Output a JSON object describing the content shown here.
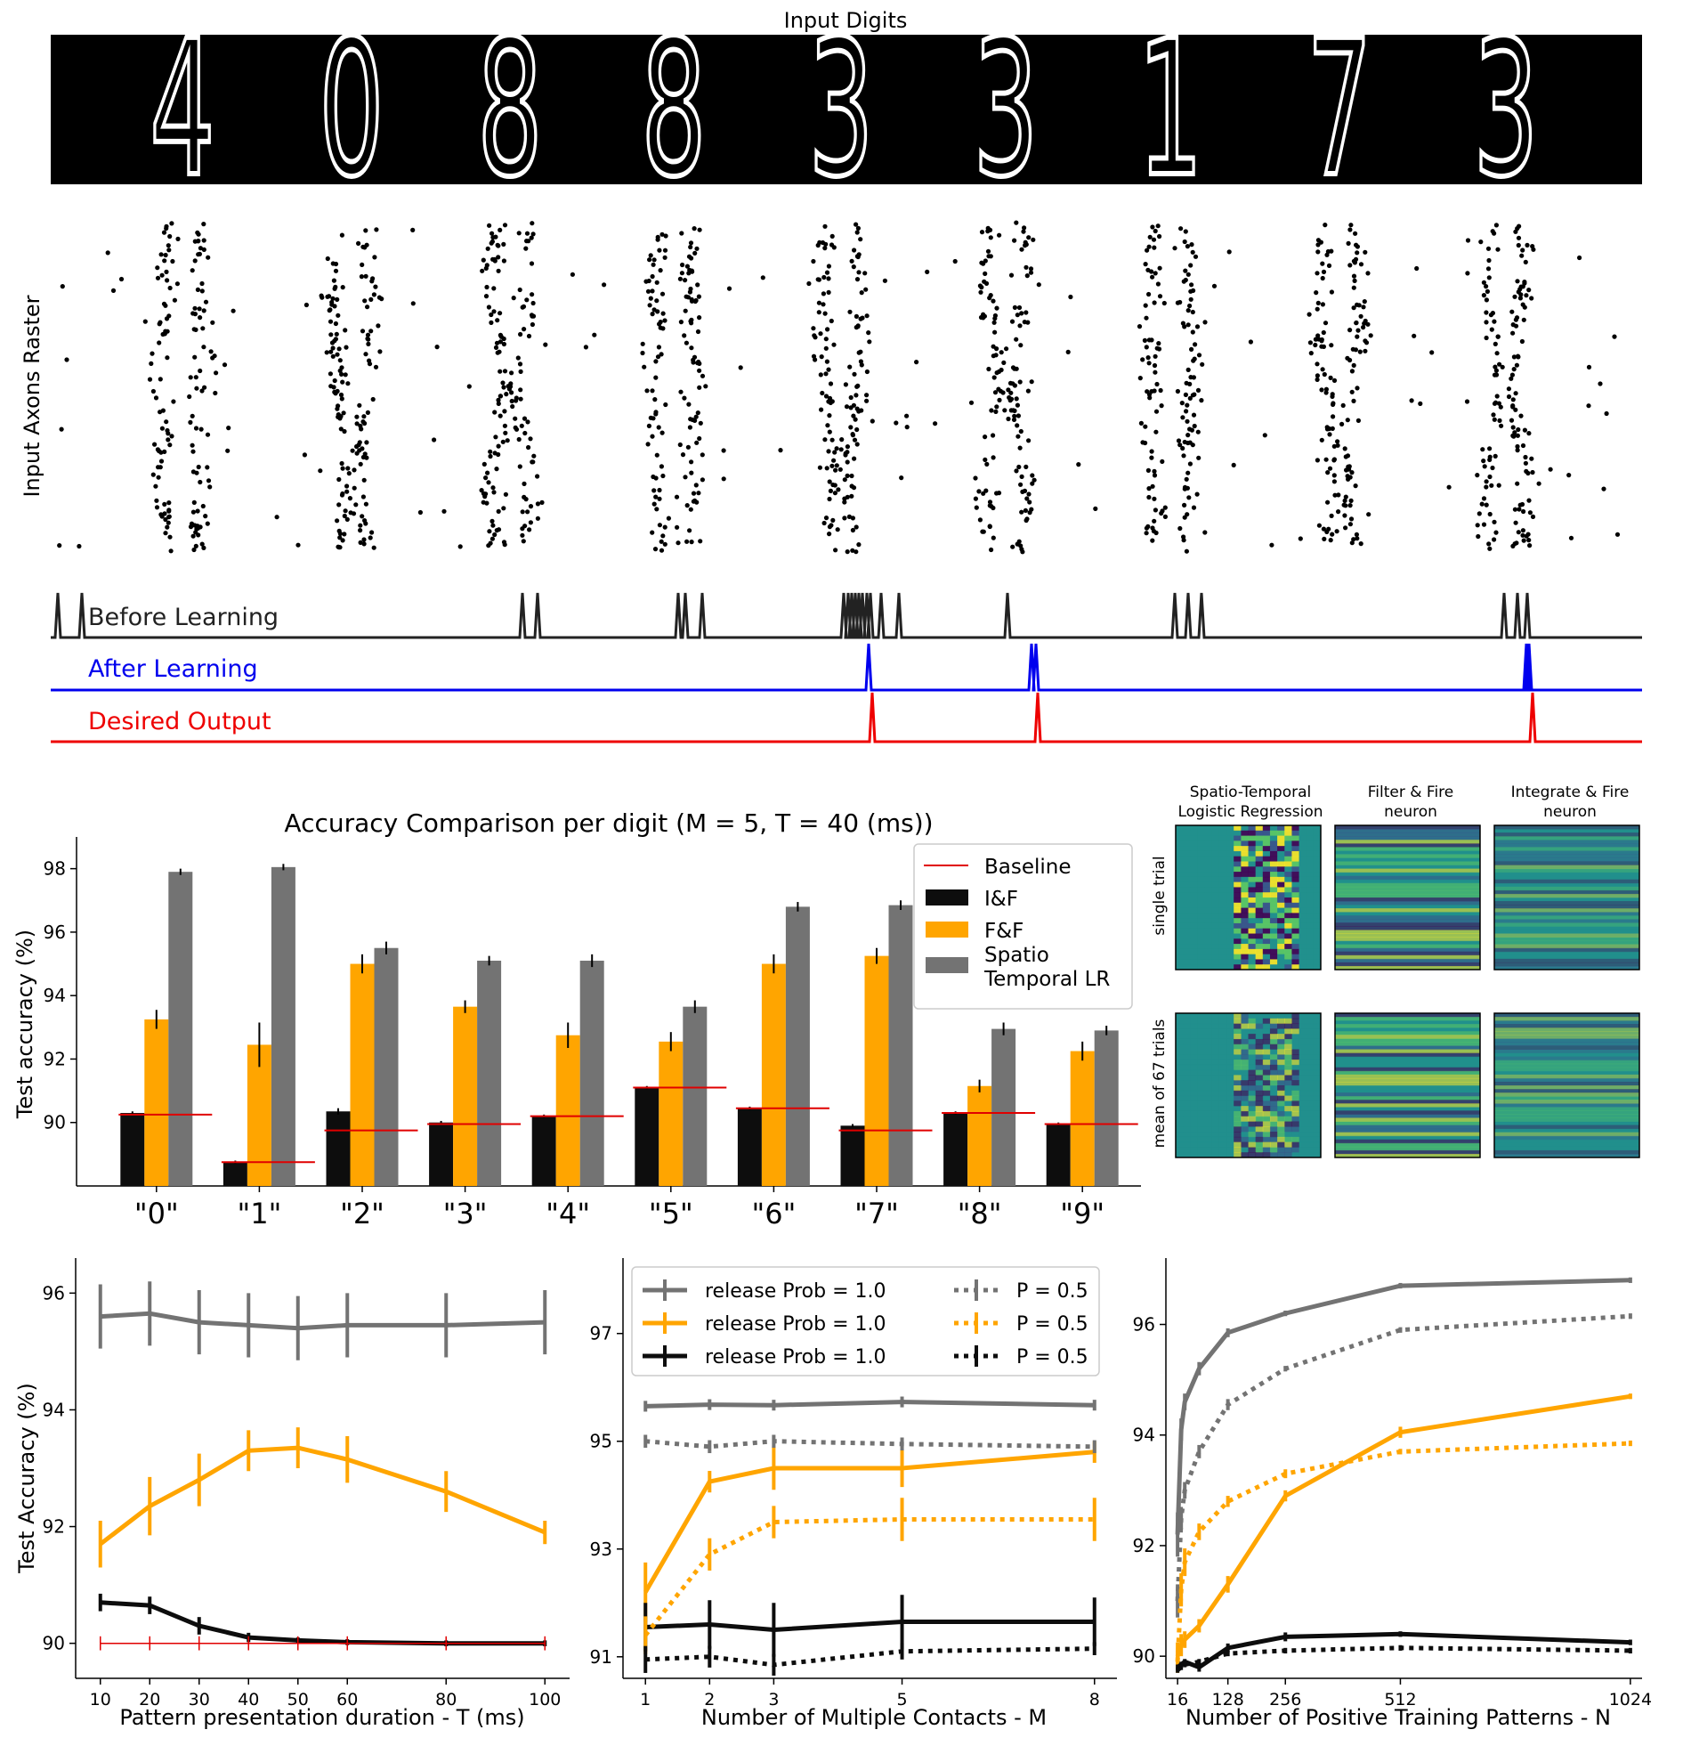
{
  "figure": {
    "input_digits_title": "Input Digits",
    "raster_ylabel": "Input Axons Raster",
    "digits_shown": [
      "4",
      "0",
      "8",
      "8",
      "3",
      "3",
      "1",
      "7",
      "3"
    ],
    "trace_labels": [
      "Before Learning",
      "After Learning",
      "Desired Output"
    ],
    "trace_colors": [
      "#222222",
      "#0000ee",
      "#ee0000"
    ]
  },
  "chart_data": [
    {
      "type": "bar",
      "title": "Accuracy Comparison per digit (M = 5, T = 40 (ms))",
      "ylabel": "Test accuracy (%)",
      "xlabel": "",
      "ylim": [
        88,
        99
      ],
      "yticks": [
        90,
        92,
        94,
        96,
        98
      ],
      "categories": [
        "\"0\"",
        "\"1\"",
        "\"2\"",
        "\"3\"",
        "\"4\"",
        "\"5\"",
        "\"6\"",
        "\"7\"",
        "\"8\"",
        "\"9\""
      ],
      "baseline": {
        "name": "Baseline",
        "color": "#e00000",
        "values": [
          90.25,
          88.75,
          89.75,
          89.95,
          90.2,
          91.1,
          90.45,
          89.75,
          90.3,
          89.95
        ]
      },
      "series": [
        {
          "name": "I&F",
          "color": "#0d0d0d",
          "values": [
            90.3,
            88.75,
            90.35,
            90.0,
            90.2,
            91.1,
            90.45,
            89.9,
            90.3,
            89.95
          ],
          "err": [
            0.05,
            0.05,
            0.1,
            0.05,
            0.05,
            0.05,
            0.05,
            0.05,
            0.05,
            0.05
          ]
        },
        {
          "name": "F&F",
          "color": "#ffa500",
          "values": [
            93.25,
            92.45,
            95.0,
            93.65,
            92.75,
            92.55,
            95.0,
            95.25,
            91.15,
            92.25
          ],
          "err": [
            0.3,
            0.7,
            0.3,
            0.2,
            0.4,
            0.3,
            0.3,
            0.25,
            0.2,
            0.3
          ]
        },
        {
          "name": "Spatio\nTemporal LR",
          "color": "#737373",
          "values": [
            97.9,
            98.05,
            95.5,
            95.1,
            95.1,
            93.65,
            96.8,
            96.85,
            92.95,
            92.9
          ],
          "err": [
            0.1,
            0.1,
            0.2,
            0.15,
            0.2,
            0.2,
            0.15,
            0.15,
            0.2,
            0.15
          ]
        }
      ],
      "legend": "top-right"
    },
    {
      "type": "heatmap",
      "column_titles": [
        "Spatio-Temporal\nLogistic Regression",
        "Filter & Fire\nneuron",
        "Integrate & Fire\nneuron"
      ],
      "row_labels": [
        "single trial",
        "mean of 67 trials"
      ],
      "colormap": "viridis"
    },
    {
      "type": "line",
      "xlabel": "Pattern presentation duration - T (ms)",
      "ylabel": "Test Accuracy (%)",
      "x": [
        10,
        20,
        30,
        40,
        50,
        60,
        80,
        100
      ],
      "xlim": [
        5,
        105
      ],
      "ylim": [
        89.4,
        96.6
      ],
      "xticks": [
        10,
        20,
        30,
        40,
        50,
        60,
        80,
        100
      ],
      "yticks": [
        90,
        92,
        94,
        96
      ],
      "series": [
        {
          "color": "#737373",
          "style": "solid",
          "values": [
            95.6,
            95.65,
            95.5,
            95.45,
            95.4,
            95.45,
            95.45,
            95.5
          ],
          "err": [
            0.55,
            0.55,
            0.55,
            0.55,
            0.55,
            0.55,
            0.55,
            0.55
          ]
        },
        {
          "color": "#ffa500",
          "style": "solid",
          "values": [
            91.7,
            92.35,
            92.8,
            93.3,
            93.35,
            93.15,
            92.6,
            91.9
          ],
          "err": [
            0.4,
            0.5,
            0.45,
            0.35,
            0.35,
            0.4,
            0.35,
            0.2
          ]
        },
        {
          "color": "#0d0d0d",
          "style": "solid",
          "values": [
            90.7,
            90.65,
            90.3,
            90.1,
            90.05,
            90.02,
            90.0,
            90.0
          ],
          "err": [
            0.15,
            0.15,
            0.15,
            0.08,
            0.05,
            0.05,
            0.05,
            0.05
          ]
        },
        {
          "color": "#e00000",
          "style": "thin",
          "values": [
            90.0,
            90.0,
            90.0,
            90.0,
            90.0,
            90.0,
            90.0,
            90.0
          ],
          "err": [
            0.12,
            0.12,
            0.12,
            0.12,
            0.12,
            0.12,
            0.12,
            0.12
          ]
        }
      ]
    },
    {
      "type": "line",
      "xlabel": "Number of Multiple Contacts - M",
      "ylabel": "",
      "x": [
        1,
        2,
        3,
        5,
        8
      ],
      "xlim": [
        0.65,
        8.35
      ],
      "ylim": [
        90.6,
        98.4
      ],
      "xticks": [
        1,
        2,
        3,
        5,
        8
      ],
      "yticks": [
        91,
        93,
        95,
        97
      ],
      "legend": "top-left",
      "series": [
        {
          "name": "release Prob = 1.0",
          "color": "#737373",
          "style": "solid",
          "values": [
            95.65,
            95.68,
            95.67,
            95.73,
            95.67
          ],
          "err": [
            0.1,
            0.1,
            0.1,
            0.1,
            0.1
          ]
        },
        {
          "name": "release Prob = 1.0",
          "color": "#ffa500",
          "style": "solid",
          "values": [
            92.2,
            94.25,
            94.5,
            94.5,
            94.8
          ],
          "err": [
            0.55,
            0.2,
            0.4,
            0.35,
            0.2
          ]
        },
        {
          "name": "release Prob = 1.0",
          "color": "#0d0d0d",
          "style": "solid",
          "values": [
            91.55,
            91.6,
            91.5,
            91.65,
            91.65
          ],
          "err": [
            0.45,
            0.45,
            0.5,
            0.5,
            0.45
          ]
        },
        {
          "name": "P = 0.5",
          "color": "#737373",
          "style": "dotted",
          "values": [
            95.0,
            94.9,
            95.0,
            94.95,
            94.9
          ],
          "err": [
            0.12,
            0.12,
            0.12,
            0.12,
            0.12
          ]
        },
        {
          "name": "P = 0.5",
          "color": "#ffa500",
          "style": "dotted",
          "values": [
            91.4,
            92.9,
            93.5,
            93.55,
            93.55
          ],
          "err": [
            0.35,
            0.3,
            0.3,
            0.4,
            0.4
          ]
        },
        {
          "name": "P = 0.5",
          "color": "#0d0d0d",
          "style": "dotted",
          "values": [
            90.95,
            91.0,
            90.85,
            91.1,
            91.15
          ],
          "err": [
            0.25,
            0.2,
            0.2,
            0.15,
            0.12
          ]
        }
      ]
    },
    {
      "type": "line",
      "xlabel": "Number of Positive Training Patterns - N",
      "ylabel": "",
      "x": [
        16,
        24,
        32,
        64,
        128,
        256,
        512,
        1024
      ],
      "xlim": [
        -10,
        1050
      ],
      "ylim": [
        89.6,
        97.2
      ],
      "xticks": [
        16,
        128,
        256,
        512,
        1024
      ],
      "xticklabels": [
        "16",
        "128",
        "256",
        "512",
        "1024"
      ],
      "yticks": [
        90,
        92,
        94,
        96
      ],
      "series": [
        {
          "color": "#737373",
          "style": "solid",
          "values": [
            92.2,
            94.1,
            94.6,
            95.2,
            95.85,
            96.2,
            96.7,
            96.8
          ],
          "err": [
            0.4,
            0.2,
            0.15,
            0.12,
            0.08,
            0.05,
            0.05,
            0.05
          ]
        },
        {
          "color": "#737373",
          "style": "dotted",
          "values": [
            91.0,
            92.5,
            93.0,
            93.7,
            94.55,
            95.2,
            95.9,
            96.15
          ],
          "err": [
            0.3,
            0.2,
            0.15,
            0.12,
            0.1,
            0.05,
            0.05,
            0.05
          ]
        },
        {
          "color": "#ffa500",
          "style": "solid",
          "values": [
            90.0,
            90.2,
            90.3,
            90.55,
            91.3,
            92.9,
            94.05,
            94.7
          ],
          "err": [
            0.25,
            0.2,
            0.15,
            0.12,
            0.15,
            0.1,
            0.1,
            0.05
          ]
        },
        {
          "color": "#ffa500",
          "style": "dotted",
          "values": [
            89.9,
            91.2,
            91.7,
            92.25,
            92.8,
            93.3,
            93.7,
            93.85
          ],
          "err": [
            0.2,
            0.3,
            0.25,
            0.15,
            0.1,
            0.08,
            0.05,
            0.05
          ]
        },
        {
          "color": "#0d0d0d",
          "style": "solid",
          "values": [
            89.8,
            89.85,
            89.9,
            89.8,
            90.15,
            90.35,
            90.4,
            90.25
          ],
          "err": [
            0.05,
            0.05,
            0.05,
            0.08,
            0.08,
            0.08,
            0.05,
            0.05
          ]
        },
        {
          "color": "#0d0d0d",
          "style": "dotted",
          "values": [
            89.75,
            89.8,
            89.85,
            89.9,
            90.05,
            90.1,
            90.15,
            90.1
          ],
          "err": [
            0.05,
            0.05,
            0.05,
            0.05,
            0.05,
            0.05,
            0.05,
            0.05
          ]
        }
      ]
    }
  ]
}
